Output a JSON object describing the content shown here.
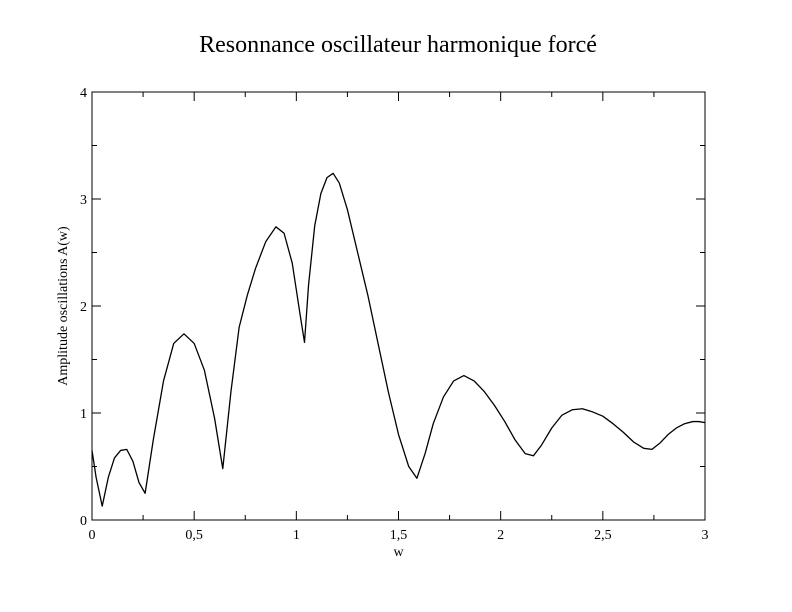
{
  "chart_data": {
    "type": "line",
    "title": "Resonnance oscillateur harmonique forcé",
    "xlabel": "w",
    "ylabel": "Amplitude oscillations A(w)",
    "xlim": [
      0,
      3
    ],
    "ylim": [
      0,
      4
    ],
    "xticks": [
      0,
      0.5,
      1,
      1.5,
      2,
      2.5,
      3
    ],
    "xtick_labels": [
      "0",
      "0,5",
      "1",
      "1,5",
      "2",
      "2,5",
      "3"
    ],
    "yticks": [
      0,
      1,
      2,
      3,
      4
    ],
    "ytick_labels": [
      "0",
      "1",
      "2",
      "3",
      "4"
    ],
    "grid": false,
    "legend": "none",
    "series": [
      {
        "color": "#000000",
        "x": [
          0,
          0.02,
          0.05,
          0.08,
          0.11,
          0.14,
          0.17,
          0.2,
          0.23,
          0.26,
          0.3,
          0.35,
          0.4,
          0.45,
          0.5,
          0.55,
          0.6,
          0.64,
          0.68,
          0.72,
          0.76,
          0.8,
          0.85,
          0.9,
          0.94,
          0.98,
          1.02,
          1.04,
          1.06,
          1.09,
          1.12,
          1.15,
          1.18,
          1.21,
          1.25,
          1.3,
          1.35,
          1.4,
          1.45,
          1.5,
          1.55,
          1.59,
          1.63,
          1.67,
          1.72,
          1.77,
          1.82,
          1.87,
          1.92,
          1.97,
          2.02,
          2.07,
          2.12,
          2.16,
          2.2,
          2.25,
          2.3,
          2.35,
          2.4,
          2.45,
          2.5,
          2.55,
          2.6,
          2.65,
          2.7,
          2.74,
          2.78,
          2.82,
          2.86,
          2.9,
          2.94,
          2.97,
          3.0
        ],
        "y": [
          0.65,
          0.4,
          0.13,
          0.4,
          0.58,
          0.65,
          0.66,
          0.55,
          0.35,
          0.25,
          0.75,
          1.3,
          1.65,
          1.74,
          1.65,
          1.4,
          0.95,
          0.48,
          1.2,
          1.8,
          2.1,
          2.35,
          2.6,
          2.74,
          2.68,
          2.4,
          1.9,
          1.66,
          2.2,
          2.75,
          3.05,
          3.2,
          3.24,
          3.15,
          2.9,
          2.5,
          2.1,
          1.65,
          1.2,
          0.8,
          0.5,
          0.39,
          0.62,
          0.9,
          1.15,
          1.3,
          1.35,
          1.3,
          1.2,
          1.07,
          0.92,
          0.75,
          0.62,
          0.6,
          0.7,
          0.86,
          0.98,
          1.03,
          1.04,
          1.01,
          0.97,
          0.9,
          0.82,
          0.73,
          0.67,
          0.66,
          0.72,
          0.8,
          0.86,
          0.9,
          0.92,
          0.92,
          0.91
        ]
      }
    ]
  }
}
